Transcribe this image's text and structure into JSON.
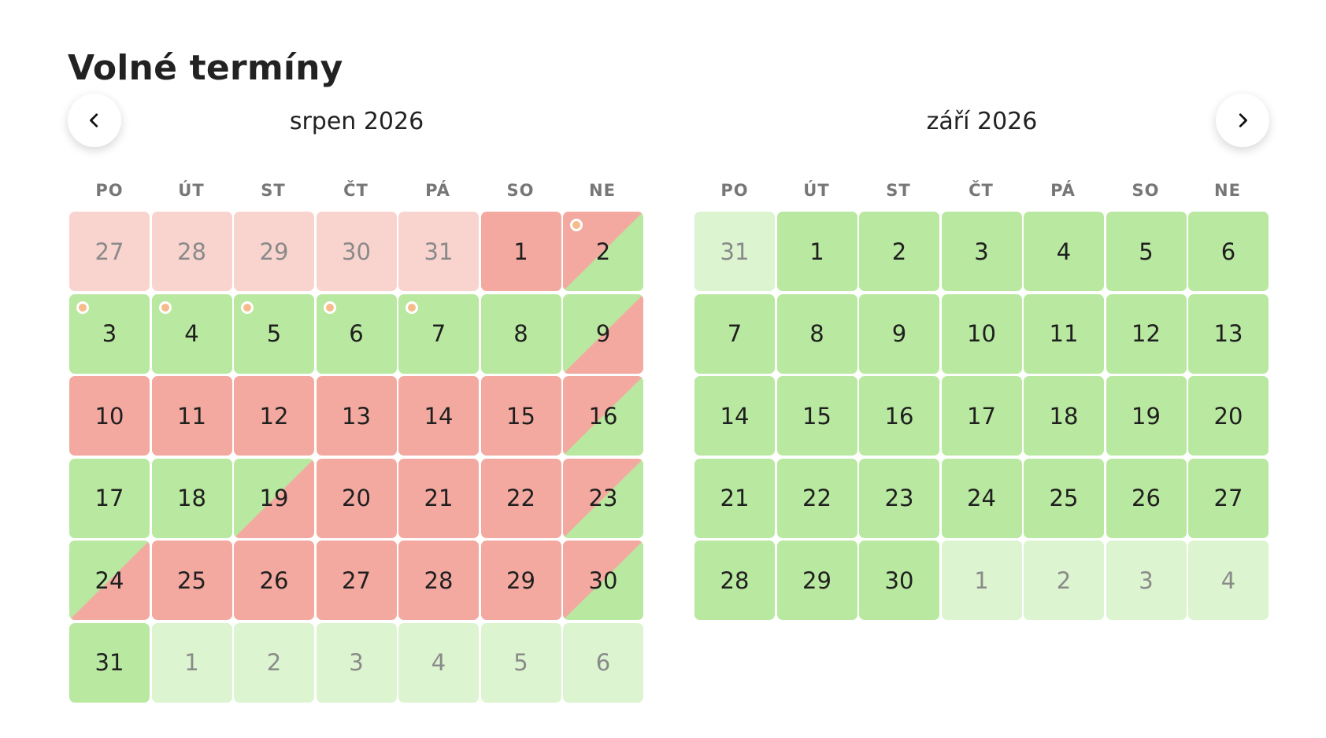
{
  "page": {
    "title": "Volné termíny"
  },
  "navigation": {
    "prev_icon": "chevron-left-icon",
    "next_icon": "chevron-right-icon"
  },
  "legend_colors": {
    "free": "#b9e8a0",
    "booked": "#f3a9a0",
    "past": "#f9d4cf",
    "other_month": "#dcf4cf",
    "marker": "#f6bc8c"
  },
  "weekdays": [
    "PO",
    "ÚT",
    "ST",
    "ČT",
    "PÁ",
    "SO",
    "NE"
  ],
  "months": [
    {
      "title": "srpen 2026",
      "days": [
        {
          "n": "27",
          "s": "past"
        },
        {
          "n": "28",
          "s": "past"
        },
        {
          "n": "29",
          "s": "past"
        },
        {
          "n": "30",
          "s": "past"
        },
        {
          "n": "31",
          "s": "past"
        },
        {
          "n": "1",
          "s": "booked"
        },
        {
          "n": "2",
          "s": "split-in",
          "dot": true
        },
        {
          "n": "3",
          "s": "free",
          "dot": true
        },
        {
          "n": "4",
          "s": "free",
          "dot": true
        },
        {
          "n": "5",
          "s": "free",
          "dot": true
        },
        {
          "n": "6",
          "s": "free",
          "dot": true
        },
        {
          "n": "7",
          "s": "free",
          "dot": true
        },
        {
          "n": "8",
          "s": "free"
        },
        {
          "n": "9",
          "s": "split-out"
        },
        {
          "n": "10",
          "s": "booked"
        },
        {
          "n": "11",
          "s": "booked"
        },
        {
          "n": "12",
          "s": "booked"
        },
        {
          "n": "13",
          "s": "booked"
        },
        {
          "n": "14",
          "s": "booked"
        },
        {
          "n": "15",
          "s": "booked"
        },
        {
          "n": "16",
          "s": "split-in"
        },
        {
          "n": "17",
          "s": "free"
        },
        {
          "n": "18",
          "s": "free"
        },
        {
          "n": "19",
          "s": "split-out"
        },
        {
          "n": "20",
          "s": "booked"
        },
        {
          "n": "21",
          "s": "booked"
        },
        {
          "n": "22",
          "s": "booked"
        },
        {
          "n": "23",
          "s": "split-in"
        },
        {
          "n": "24",
          "s": "split-out"
        },
        {
          "n": "25",
          "s": "booked"
        },
        {
          "n": "26",
          "s": "booked"
        },
        {
          "n": "27",
          "s": "booked"
        },
        {
          "n": "28",
          "s": "booked"
        },
        {
          "n": "29",
          "s": "booked"
        },
        {
          "n": "30",
          "s": "split-in"
        },
        {
          "n": "31",
          "s": "free"
        },
        {
          "n": "1",
          "s": "other"
        },
        {
          "n": "2",
          "s": "other"
        },
        {
          "n": "3",
          "s": "other"
        },
        {
          "n": "4",
          "s": "other"
        },
        {
          "n": "5",
          "s": "other"
        },
        {
          "n": "6",
          "s": "other"
        }
      ]
    },
    {
      "title": "září 2026",
      "days": [
        {
          "n": "31",
          "s": "other"
        },
        {
          "n": "1",
          "s": "free"
        },
        {
          "n": "2",
          "s": "free"
        },
        {
          "n": "3",
          "s": "free"
        },
        {
          "n": "4",
          "s": "free"
        },
        {
          "n": "5",
          "s": "free"
        },
        {
          "n": "6",
          "s": "free"
        },
        {
          "n": "7",
          "s": "free"
        },
        {
          "n": "8",
          "s": "free"
        },
        {
          "n": "9",
          "s": "free"
        },
        {
          "n": "10",
          "s": "free"
        },
        {
          "n": "11",
          "s": "free"
        },
        {
          "n": "12",
          "s": "free"
        },
        {
          "n": "13",
          "s": "free"
        },
        {
          "n": "14",
          "s": "free"
        },
        {
          "n": "15",
          "s": "free"
        },
        {
          "n": "16",
          "s": "free"
        },
        {
          "n": "17",
          "s": "free"
        },
        {
          "n": "18",
          "s": "free"
        },
        {
          "n": "19",
          "s": "free"
        },
        {
          "n": "20",
          "s": "free"
        },
        {
          "n": "21",
          "s": "free"
        },
        {
          "n": "22",
          "s": "free"
        },
        {
          "n": "23",
          "s": "free"
        },
        {
          "n": "24",
          "s": "free"
        },
        {
          "n": "25",
          "s": "free"
        },
        {
          "n": "26",
          "s": "free"
        },
        {
          "n": "27",
          "s": "free"
        },
        {
          "n": "28",
          "s": "free"
        },
        {
          "n": "29",
          "s": "free"
        },
        {
          "n": "30",
          "s": "free"
        },
        {
          "n": "1",
          "s": "other"
        },
        {
          "n": "2",
          "s": "other"
        },
        {
          "n": "3",
          "s": "other"
        },
        {
          "n": "4",
          "s": "other"
        }
      ]
    }
  ]
}
